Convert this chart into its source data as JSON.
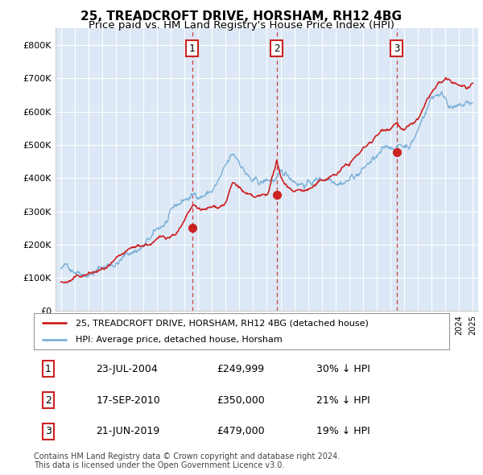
{
  "title": "25, TREADCROFT DRIVE, HORSHAM, RH12 4BG",
  "subtitle": "Price paid vs. HM Land Registry's House Price Index (HPI)",
  "ylim": [
    0,
    850000
  ],
  "yticks": [
    0,
    100000,
    200000,
    300000,
    400000,
    500000,
    600000,
    700000,
    800000
  ],
  "ytick_labels": [
    "£0",
    "£100K",
    "£200K",
    "£300K",
    "£400K",
    "£500K",
    "£600K",
    "£700K",
    "£800K"
  ],
  "bg_color": "#dce8f5",
  "grid_color": "#ffffff",
  "hpi_color": "#7ab0d8",
  "price_color": "#cc2222",
  "vline_color": "#cc2222",
  "purchases": [
    {
      "date_num": 2004.55,
      "price": 249999,
      "label": "1"
    },
    {
      "date_num": 2010.71,
      "price": 350000,
      "label": "2"
    },
    {
      "date_num": 2019.47,
      "price": 479000,
      "label": "3"
    }
  ],
  "legend_property_label": "25, TREADCROFT DRIVE, HORSHAM, RH12 4BG (detached house)",
  "legend_hpi_label": "HPI: Average price, detached house, Horsham",
  "table_rows": [
    [
      "1",
      "23-JUL-2004",
      "£249,999",
      "30% ↓ HPI"
    ],
    [
      "2",
      "17-SEP-2010",
      "£350,000",
      "21% ↓ HPI"
    ],
    [
      "3",
      "21-JUN-2019",
      "£479,000",
      "19% ↓ HPI"
    ]
  ],
  "footnote": "Contains HM Land Registry data © Crown copyright and database right 2024.\nThis data is licensed under the Open Government Licence v3.0.",
  "title_fontsize": 11,
  "subtitle_fontsize": 9.5,
  "tick_fontsize": 8,
  "legend_fontsize": 8,
  "table_fontsize": 9,
  "footnote_fontsize": 7
}
